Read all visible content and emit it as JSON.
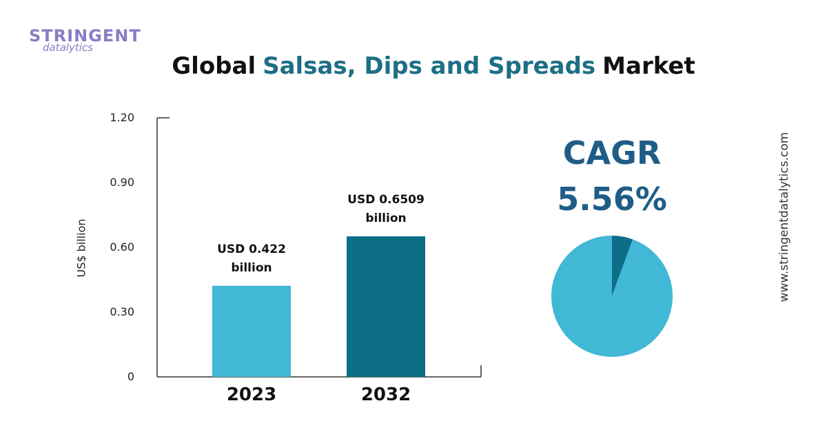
{
  "header": {
    "logo": [
      "STRINGENT",
      "datalytics"
    ],
    "title_parts": [
      "Global",
      "Salsas, Dips and Spreads",
      "Market"
    ],
    "website": "www.stringentdatalytics.com"
  },
  "chart_data": [
    {
      "type": "bar",
      "ylabel": "US$ billion",
      "categories": [
        "2023",
        "2032"
      ],
      "values": [
        0.422,
        0.6509
      ],
      "value_labels": [
        "USD 0.422 billion",
        "USD 0.6509 billion"
      ],
      "colors": [
        "#41b8d5",
        "#0d6e87"
      ],
      "ylim": [
        0,
        1.2
      ],
      "yticks": [
        0,
        {
          "value": 0.3,
          "label": "0.30"
        },
        {
          "value": 0.6,
          "label": "0.60"
        },
        {
          "value": 0.9,
          "label": "0.90"
        },
        {
          "value": 1.2,
          "label": "1.20"
        }
      ],
      "grid": false
    },
    {
      "type": "pie",
      "title": "CAGR",
      "values": [
        5.56,
        94.44
      ],
      "value_labels": [
        "5.56%",
        null
      ],
      "colors": [
        "#0d6e87",
        "#41b8d5"
      ]
    }
  ]
}
